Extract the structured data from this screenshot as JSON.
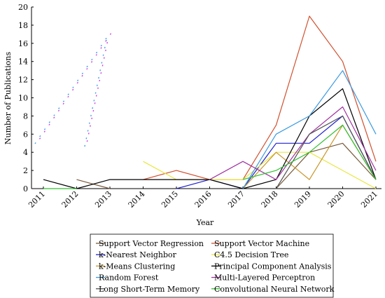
{
  "chart_data": {
    "type": "line",
    "xlabel": "Year",
    "ylabel": "Number of Publications",
    "x": [
      2011,
      2012,
      2013,
      2014,
      2015,
      2016,
      2017,
      2018,
      2019,
      2020,
      2021
    ],
    "x_tick_labels": [
      "2011",
      "2012",
      "2013",
      "2014",
      "2015",
      "2016",
      "2017",
      "2018",
      "2019",
      "2020",
      "2021"
    ],
    "y_ticks": [
      "0",
      "2",
      "4",
      "6",
      "8",
      "10",
      "12",
      "14",
      "16",
      "18",
      "20"
    ],
    "ylim": [
      0,
      20
    ],
    "grid": false,
    "legend_position": "bottom",
    "series": [
      {
        "name": "Support Vector Regression",
        "color": "#7a5a3a",
        "values": [
          null,
          1,
          0,
          null,
          null,
          null,
          null,
          0,
          4,
          5,
          1
        ]
      },
      {
        "name": "Support Vector Machine",
        "color": "#d0502e",
        "values": [
          null,
          null,
          null,
          1,
          2,
          1,
          1,
          7,
          19,
          14,
          3
        ]
      },
      {
        "name": "k-Nearest Neighbor",
        "color": "#2020d0",
        "values": [
          null,
          null,
          null,
          null,
          0,
          1,
          0,
          5,
          5,
          8,
          1
        ]
      },
      {
        "name": "C4.5 Decision Tree",
        "color": "#e8e840",
        "values": [
          null,
          null,
          null,
          3,
          1,
          1,
          1,
          4,
          4,
          2,
          0
        ]
      },
      {
        "name": "k-Means Clustering",
        "color": "#c8962a",
        "values": [
          null,
          null,
          null,
          null,
          null,
          null,
          0,
          4,
          1,
          7,
          1
        ]
      },
      {
        "name": "Principal Component Analysis",
        "color": "#000000",
        "values": [
          1,
          0,
          1,
          1,
          1,
          1,
          0,
          1,
          8,
          11,
          1
        ]
      },
      {
        "name": "Random Forest",
        "color": "#3a9ae0",
        "values": [
          null,
          null,
          null,
          null,
          null,
          null,
          0,
          6,
          8,
          13,
          6
        ]
      },
      {
        "name": "Multi-Layered Perceptron",
        "color": "#a030a0",
        "values": [
          null,
          null,
          null,
          null,
          null,
          1,
          3,
          1,
          6,
          9,
          2
        ]
      },
      {
        "name": "Long Short-Term Memory",
        "color": "#505050",
        "values": [
          null,
          null,
          null,
          null,
          null,
          null,
          null,
          0,
          6,
          8,
          1
        ]
      },
      {
        "name": "Convolutional Neural Network",
        "color": "#30c030",
        "values": [
          0,
          0,
          null,
          null,
          null,
          null,
          1,
          2,
          4,
          7,
          1
        ]
      }
    ]
  }
}
